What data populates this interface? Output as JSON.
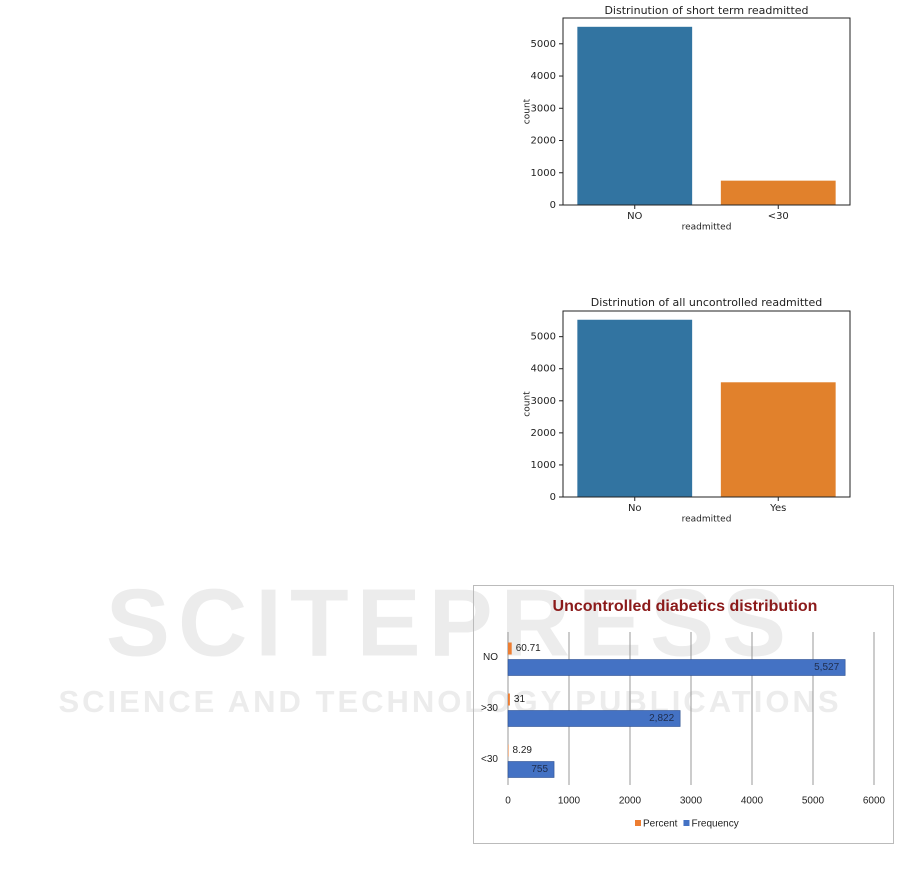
{
  "watermark": {
    "title": "SCITEPRESS",
    "subtitle": "SCIENCE AND TECHNOLOGY PUBLICATIONS"
  },
  "chart_data": [
    {
      "type": "bar",
      "title": "Distrinution of short term readmitted",
      "x_label": "readmitted",
      "y_label": "count",
      "categories": [
        "NO",
        "<30"
      ],
      "values": [
        5527,
        755
      ],
      "colors": [
        "#3274a1",
        "#e1812c"
      ],
      "ylim": [
        0,
        5800
      ],
      "yticks": [
        0,
        1000,
        2000,
        3000,
        4000,
        5000
      ]
    },
    {
      "type": "bar",
      "title": "Distrinution of all uncontrolled readmitted",
      "x_label": "readmitted",
      "y_label": "count",
      "categories": [
        "No",
        "Yes"
      ],
      "values": [
        5527,
        3577
      ],
      "colors": [
        "#3274a1",
        "#e1812c"
      ],
      "ylim": [
        0,
        5800
      ],
      "yticks": [
        0,
        1000,
        2000,
        3000,
        4000,
        5000
      ]
    },
    {
      "type": "hbar",
      "title": "Uncontrolled diabetics distribution",
      "categories": [
        "NO",
        ">30",
        "<30"
      ],
      "series": [
        {
          "name": "Percent",
          "color": "#ed7d31",
          "values": [
            60.71,
            31,
            8.29
          ]
        },
        {
          "name": "Frequency",
          "color": "#4472c4",
          "values": [
            5527,
            2822,
            755
          ],
          "value_labels": [
            "5,527",
            "2,822",
            "755"
          ]
        }
      ],
      "xlim": [
        0,
        6000
      ],
      "xticks": [
        0,
        1000,
        2000,
        3000,
        4000,
        5000,
        6000
      ],
      "grid": true,
      "legend": "bottom"
    }
  ]
}
